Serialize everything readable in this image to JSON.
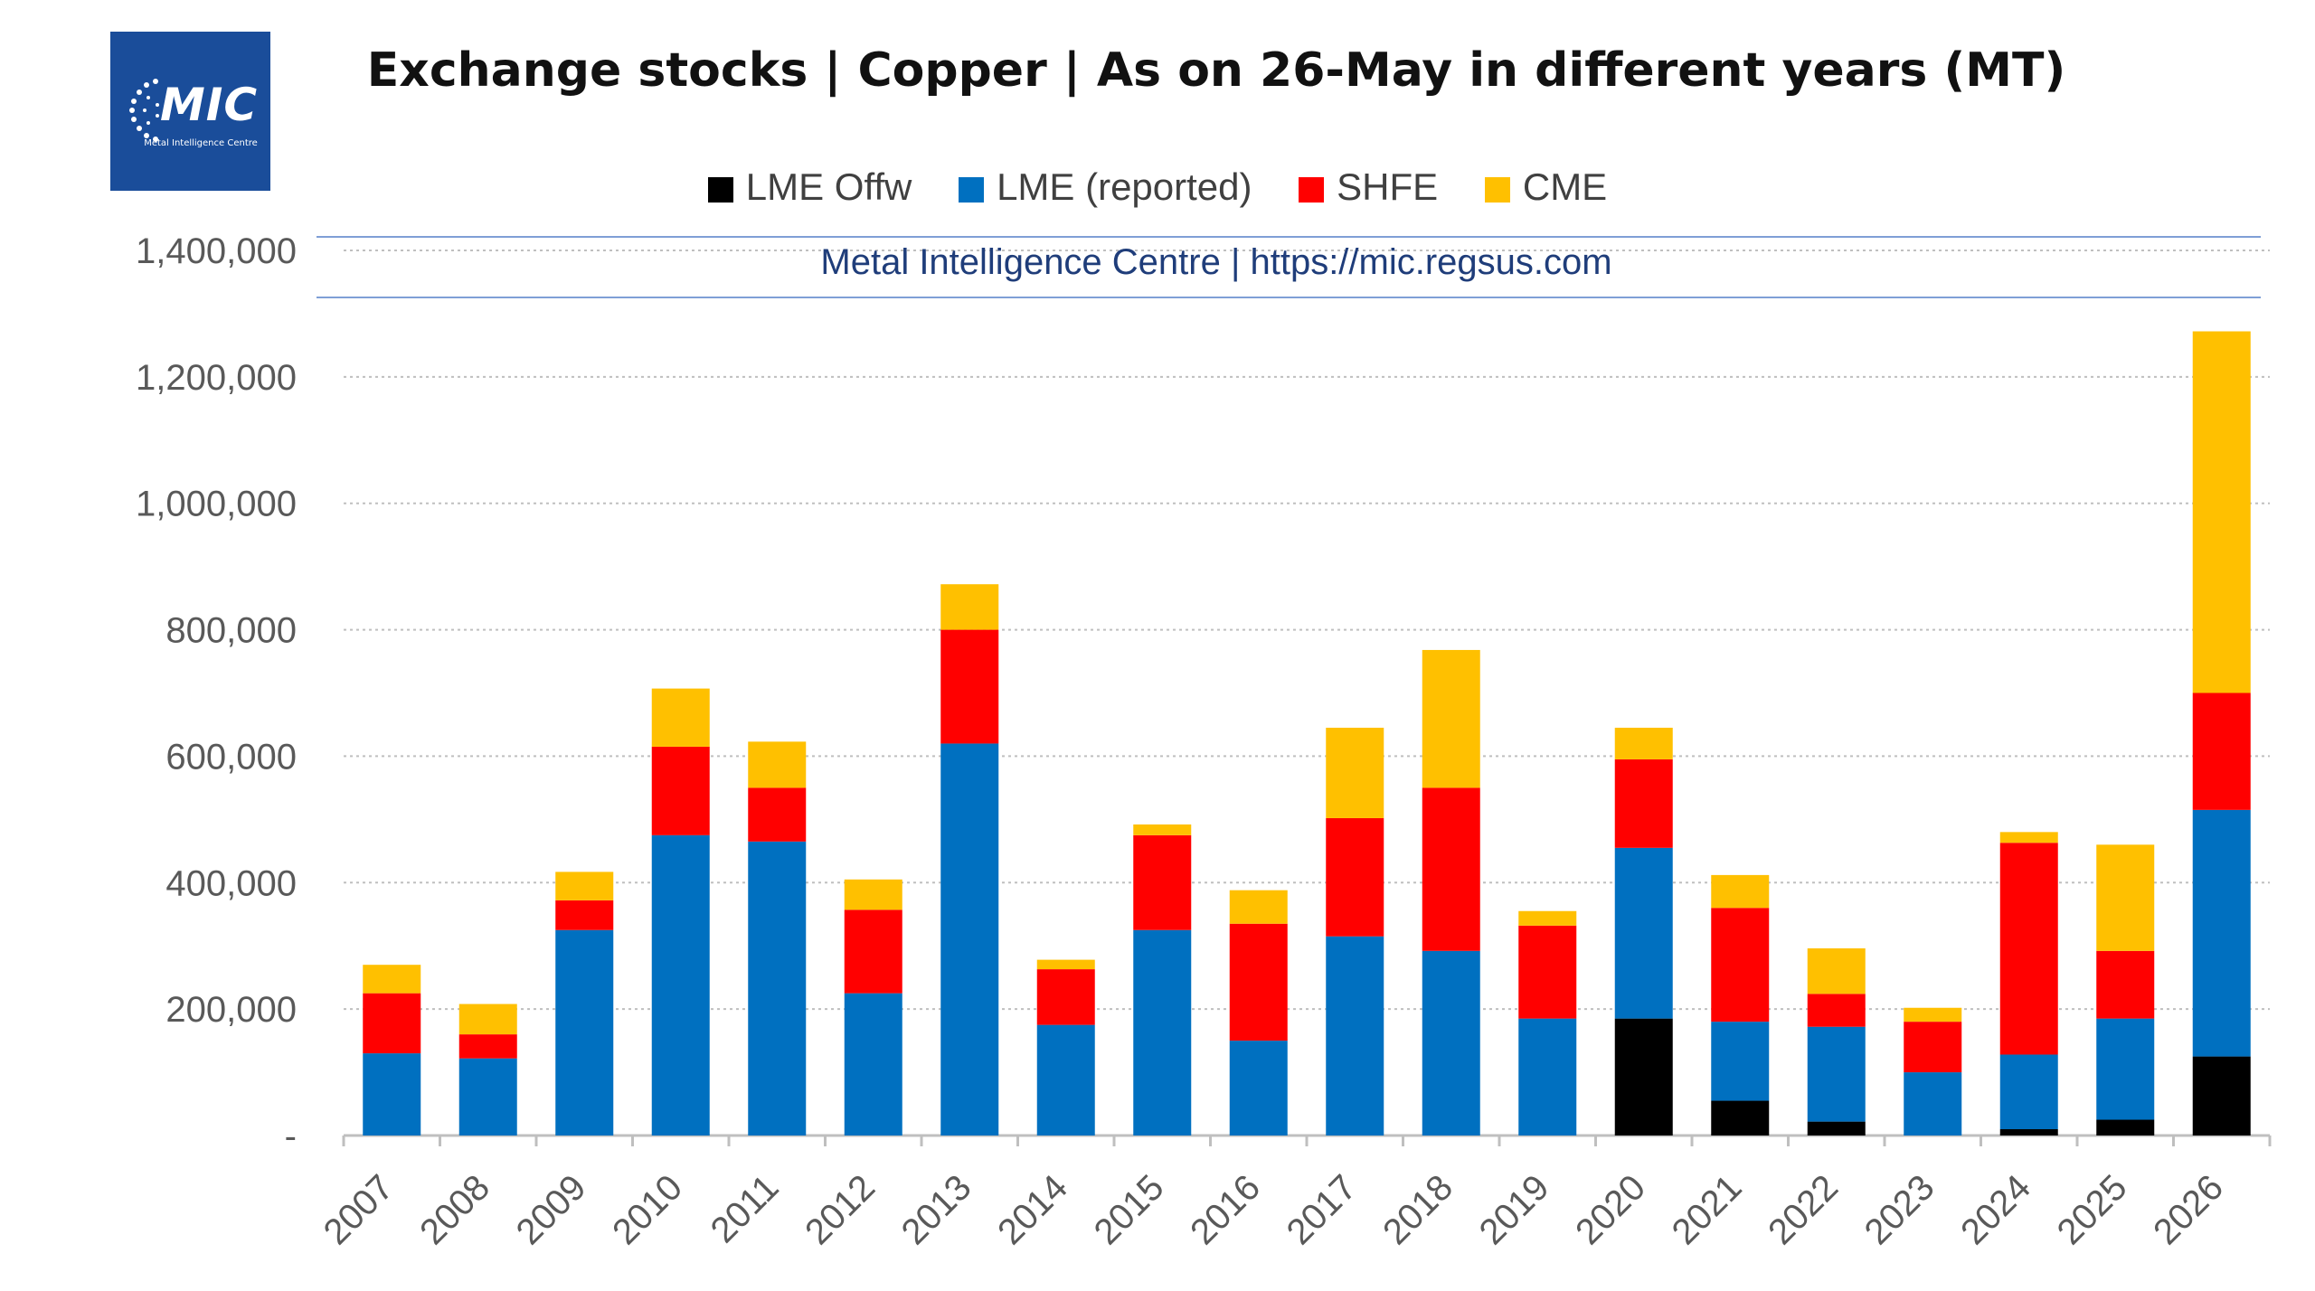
{
  "logo": {
    "text": "MIC",
    "subtitle": "Metal Intelligence Centre"
  },
  "watermark": "Metal Intelligence Centre | https://mic.regsus.com",
  "colors": {
    "lme_offw": "#000000",
    "lme_reported": "#0070c0",
    "shfe": "#ff0000",
    "cme": "#ffc000",
    "logo_bg": "#1a4d9a"
  },
  "chart_data": {
    "type": "bar",
    "stacked": true,
    "title": "Exchange stocks | Copper | As on 26-May in different years (MT)",
    "legend_position": "top",
    "categories": [
      "2007",
      "2008",
      "2009",
      "2010",
      "2011",
      "2012",
      "2013",
      "2014",
      "2015",
      "2016",
      "2017",
      "2018",
      "2019",
      "2020",
      "2021",
      "2022",
      "2023",
      "2024",
      "2025",
      "2026"
    ],
    "series": [
      {
        "name": "LME Offw",
        "color": "#000000",
        "values": [
          0,
          0,
          0,
          0,
          0,
          0,
          0,
          0,
          0,
          0,
          0,
          0,
          0,
          185000,
          55000,
          22000,
          0,
          10000,
          25000,
          125000
        ]
      },
      {
        "name": "LME (reported)",
        "color": "#0070c0",
        "values": [
          130000,
          122000,
          325000,
          475000,
          465000,
          225000,
          620000,
          175000,
          325000,
          150000,
          315000,
          292000,
          185000,
          270000,
          125000,
          150000,
          100000,
          118000,
          160000,
          390000
        ]
      },
      {
        "name": "SHFE",
        "color": "#ff0000",
        "values": [
          95000,
          38000,
          47000,
          140000,
          85000,
          132000,
          180000,
          88000,
          150000,
          185000,
          187000,
          258000,
          147000,
          140000,
          180000,
          52000,
          80000,
          335000,
          107000,
          185000
        ]
      },
      {
        "name": "CME",
        "color": "#ffc000",
        "values": [
          45000,
          48000,
          45000,
          92000,
          73000,
          48000,
          72000,
          15000,
          17000,
          53000,
          143000,
          218000,
          23000,
          50000,
          52000,
          72000,
          22000,
          17000,
          168000,
          572000
        ]
      }
    ],
    "ylim": [
      0,
      1400000
    ],
    "yticks": [
      0,
      200000,
      400000,
      600000,
      800000,
      1000000,
      1200000,
      1400000
    ],
    "ytick_labels": [
      "-",
      "200,000",
      "400,000",
      "600,000",
      "800,000",
      "1,000,000",
      "1,200,000",
      "1,400,000"
    ],
    "grid": true,
    "xlabel": "",
    "ylabel": ""
  }
}
